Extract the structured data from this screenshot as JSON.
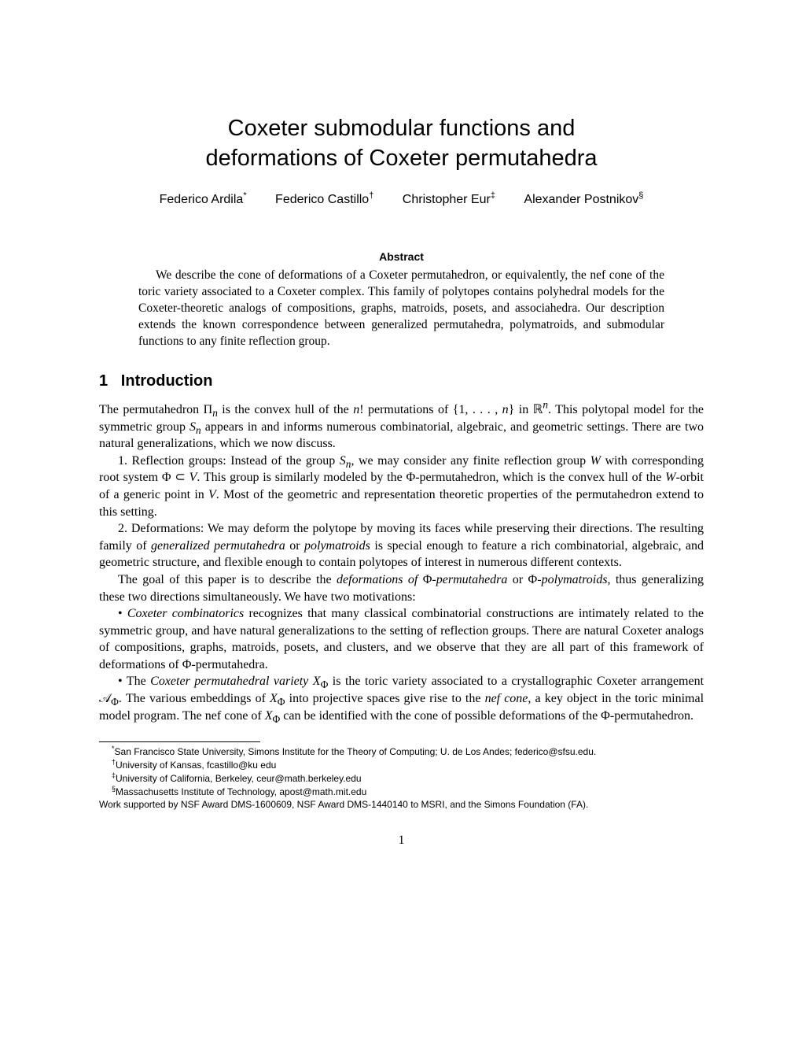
{
  "title_line1": "Coxeter submodular functions and",
  "title_line2": "deformations of Coxeter permutahedra",
  "authors": {
    "a1": {
      "name": "Federico Ardila",
      "mark": "*"
    },
    "a2": {
      "name": "Federico Castillo",
      "mark": "†"
    },
    "a3": {
      "name": "Christopher Eur",
      "mark": "‡"
    },
    "a4": {
      "name": "Alexander Postnikov",
      "mark": "§"
    }
  },
  "abstract": {
    "heading": "Abstract",
    "text": "We describe the cone of deformations of a Coxeter permutahedron, or equivalently, the nef cone of the toric variety associated to a Coxeter complex. This family of polytopes contains polyhedral models for the Coxeter-theoretic analogs of compositions, graphs, matroids, posets, and associahedra. Our description extends the known correspondence between generalized permutahedra, polymatroids, and submodular functions to any finite reflection group."
  },
  "section": {
    "number": "1",
    "title": "Introduction"
  },
  "para1": {
    "pre": "The permutahedron Π",
    "sub_n1": "n",
    "mid1": " is the convex hull of the ",
    "nfact": "n",
    "mid2": "! permutations of {1, . . . , ",
    "n2": "n",
    "mid3": "} in ",
    "R": "ℝ",
    "exp_n": "n",
    "mid4": ". This polytopal model for the symmetric group ",
    "S": "S",
    "sub_n2": "n",
    "tail": " appears in and informs numerous combinatorial, algebraic, and geometric settings. There are two natural generalizations, which we now discuss."
  },
  "para2": {
    "lead": "1. Reflection groups: Instead of the group ",
    "S": "S",
    "sub_n": "n",
    "mid1": ", we may consider any finite reflection group ",
    "W1": "W",
    "mid2": " with corresponding root system Φ ⊂ ",
    "V1": "V",
    "mid3": ". This group is similarly modeled by the Φ-permutahedron, which is the convex hull of the ",
    "W2": "W",
    "mid4": "-orbit of a generic point in ",
    "V2": "V",
    "tail": ". Most of the geometric and representation theoretic properties of the permutahedron extend to this setting."
  },
  "para3": {
    "lead": "2. Deformations: We may deform the polytope by moving its faces while preserving their directions. The resulting family of ",
    "em1": "generalized permutahedra",
    "mid1": " or ",
    "em2": "polymatroids",
    "tail": " is special enough to feature a rich combinatorial, algebraic, and geometric structure, and flexible enough to contain polytopes of interest in numerous different contexts."
  },
  "para4": {
    "lead": "The goal of this paper is to describe the ",
    "em1": "deformations of ",
    "mid1": "Φ",
    "em2": "-permutahedra",
    "mid2": " or Φ",
    "em3": "-polymatroids",
    "tail": ", thus generalizing these two directions simultaneously. We have two motivations:"
  },
  "para5": {
    "bullet": "• ",
    "em1": "Coxeter combinatorics",
    "tail": " recognizes that many classical combinatorial constructions are intimately related to the symmetric group, and have natural generalizations to the setting of reflection groups. There are natural Coxeter analogs of compositions, graphs, matroids, posets, and clusters, and we observe that they are all part of this framework of deformations of Φ-permutahedra."
  },
  "para6": {
    "bullet": "• The ",
    "em1": "Coxeter permutahedral variety",
    "sp1": " ",
    "X1": "X",
    "sub_phi1": "Φ",
    "mid1": " is the toric variety associated to a crystallographic Coxeter arrangement ",
    "calA": "𝒜",
    "sub_phi2": "Φ",
    "mid2": ". The various embeddings of ",
    "X2": "X",
    "sub_phi3": "Φ",
    "mid3": " into projective spaces give rise to the ",
    "em2": "nef cone",
    "mid4": ", a key object in the toric minimal model program. The nef cone of ",
    "X3": "X",
    "sub_phi4": "Φ",
    "tail": " can be identified with the cone of possible deformations of the Φ-permutahedron."
  },
  "footnotes": {
    "f1": {
      "mark": "*",
      "text": "San Francisco State University, Simons Institute for the Theory of Computing; U. de Los Andes; federico@sfsu.edu."
    },
    "f2": {
      "mark": "†",
      "text": "University of Kansas, fcastillo@ku edu"
    },
    "f3": {
      "mark": "‡",
      "text": "University of California, Berkeley, ceur@math.berkeley.edu"
    },
    "f4": {
      "mark": "§",
      "text": "Massachusetts Institute of Technology, apost@math.mit.edu"
    },
    "f5": {
      "text": "Work supported by NSF Award DMS-1600609, NSF Award DMS-1440140 to MSRI, and the Simons Foundation (FA)."
    }
  },
  "page_number": "1"
}
